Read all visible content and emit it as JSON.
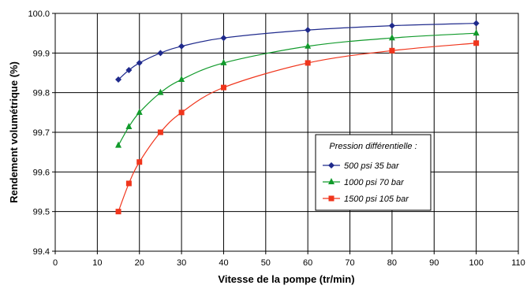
{
  "chart_data": {
    "type": "line",
    "xlabel": "Vitesse de la pompe (tr/min)",
    "ylabel": "Rendement volumétrique (%)",
    "xlim": [
      0,
      110
    ],
    "ylim": [
      99.4,
      100.0
    ],
    "xticks": [
      "0",
      "10",
      "20",
      "30",
      "40",
      "50",
      "60",
      "70",
      "80",
      "90",
      "100",
      "110"
    ],
    "yticks": [
      "99.4",
      "99.5",
      "99.6",
      "99.7",
      "99.8",
      "99.9",
      "100.0"
    ],
    "grid": true,
    "legend": {
      "title": "Pression différentielle :",
      "placement": "center-right"
    },
    "series": [
      {
        "name": "500 psi   35 bar",
        "color": "#1f2a8c",
        "marker": "diamond",
        "x": [
          15,
          17.5,
          20,
          25,
          30,
          40,
          60,
          80,
          100
        ],
        "y": [
          99.833,
          99.857,
          99.875,
          99.9,
          99.917,
          99.938,
          99.958,
          99.969,
          99.975
        ]
      },
      {
        "name": "1000 psi   70 bar",
        "color": "#119a2b",
        "marker": "triangle",
        "x": [
          15,
          17.5,
          20,
          25,
          30,
          40,
          60,
          80,
          100
        ],
        "y": [
          99.667,
          99.714,
          99.75,
          99.8,
          99.833,
          99.875,
          99.917,
          99.938,
          99.95
        ]
      },
      {
        "name": "1500 psi   105 bar",
        "color": "#f0351c",
        "marker": "square",
        "x": [
          15,
          17.5,
          20,
          25,
          30,
          40,
          60,
          80,
          100
        ],
        "y": [
          99.5,
          99.571,
          99.625,
          99.7,
          99.75,
          99.813,
          99.875,
          99.906,
          99.925
        ]
      }
    ]
  }
}
